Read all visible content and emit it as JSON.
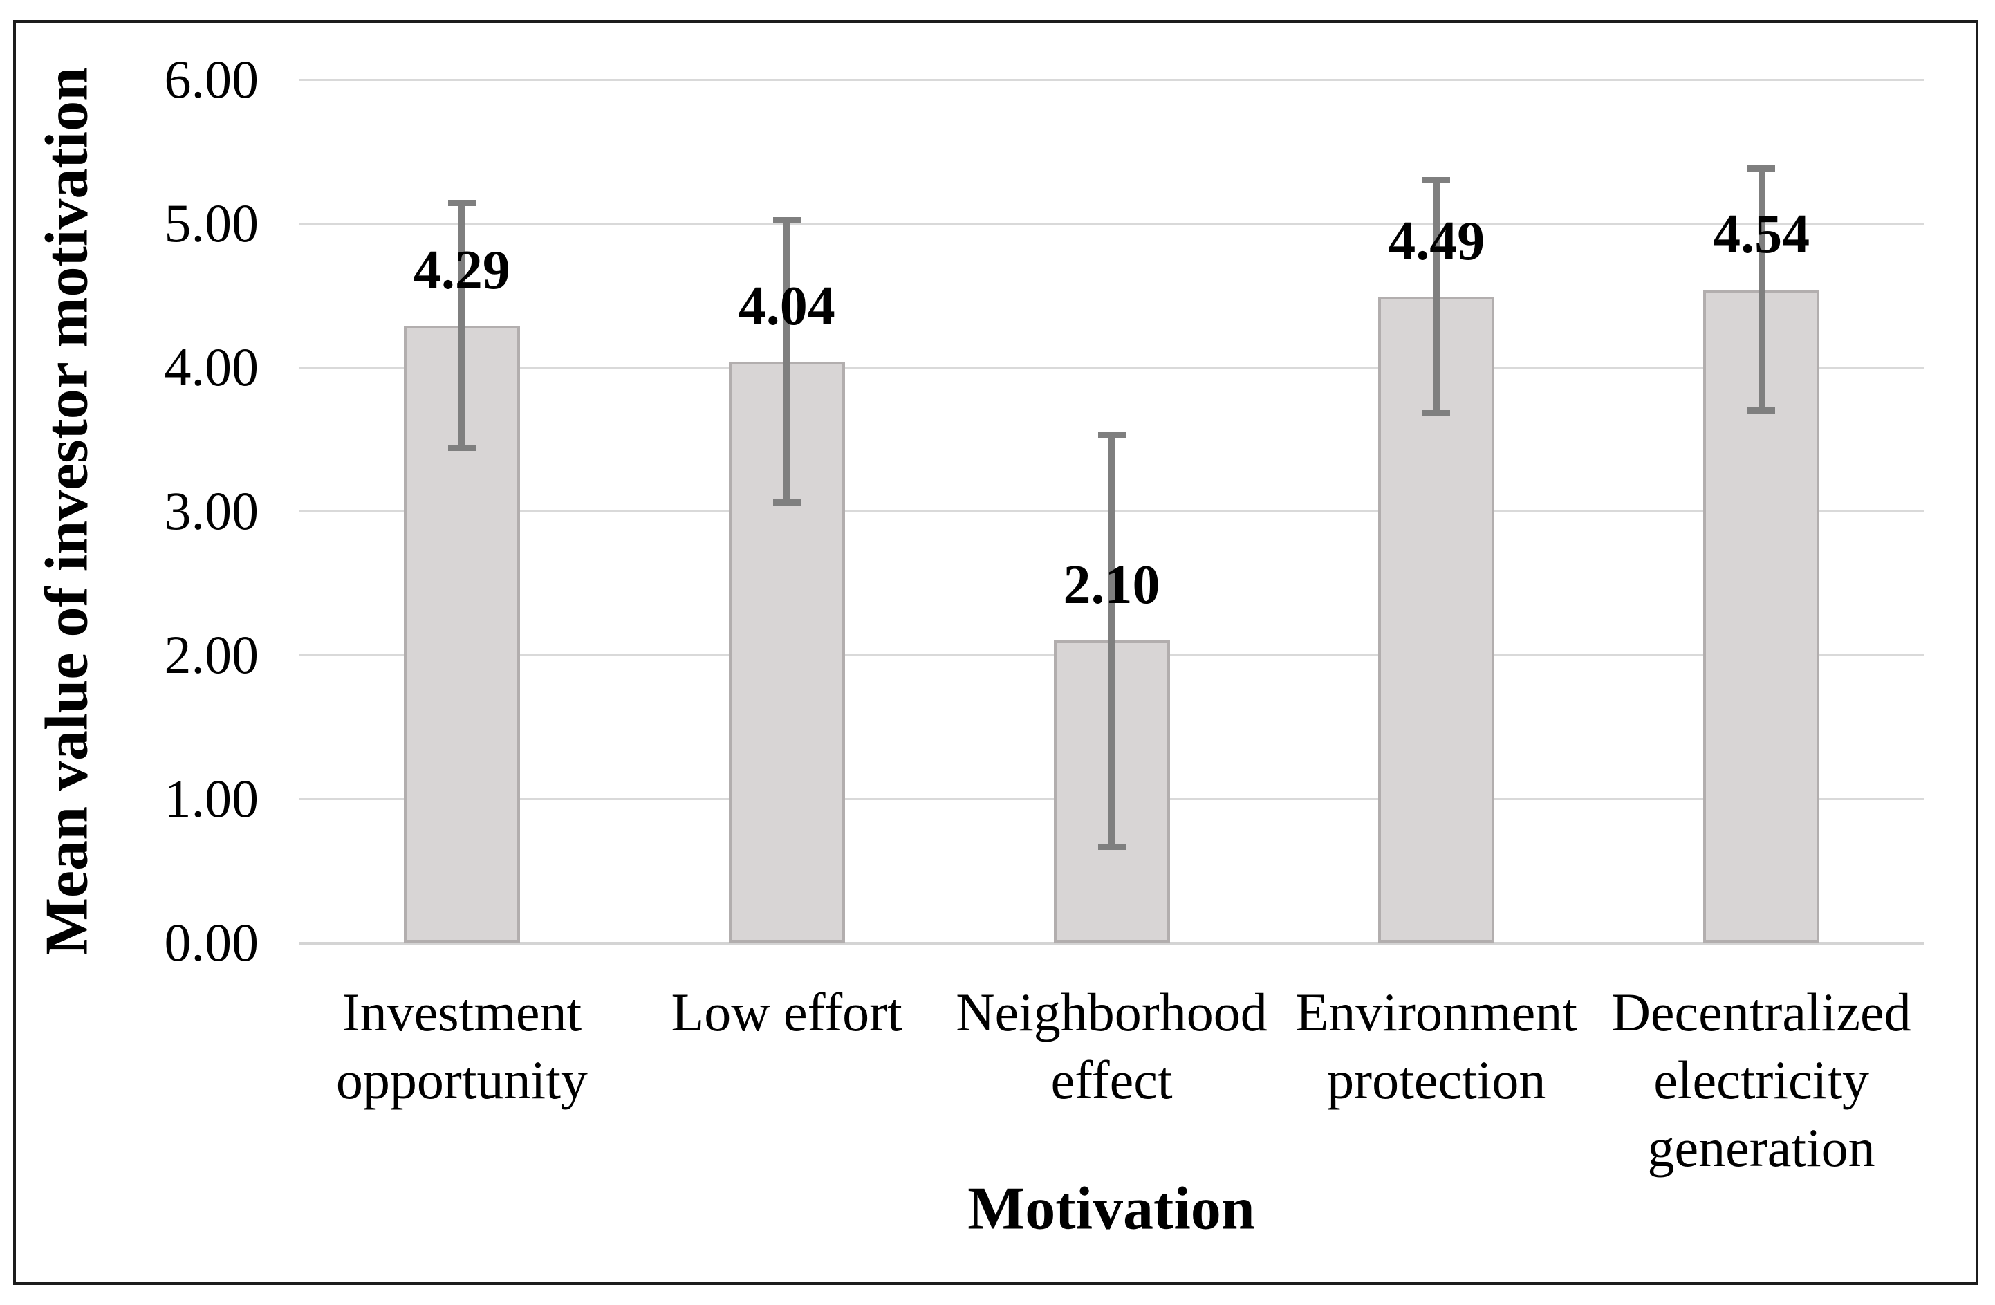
{
  "chart_data": {
    "type": "bar",
    "title": "",
    "xlabel": "Motivation",
    "ylabel": "Mean value of investor motivation",
    "categories": [
      "Investment opportunity",
      "Low effort",
      "Neighborhood effect",
      "Environment protection",
      "Decentralized electricity generation"
    ],
    "values": [
      4.29,
      4.04,
      2.1,
      4.49,
      4.54
    ],
    "data_labels": [
      "4.29",
      "4.04",
      "2.10",
      "4.49",
      "4.54"
    ],
    "error_low": [
      3.45,
      3.07,
      0.68,
      3.69,
      3.71
    ],
    "error_high": [
      5.13,
      5.01,
      3.52,
      5.29,
      5.37
    ],
    "ylim": [
      0,
      6
    ],
    "ytick_step": 1,
    "ytick_labels": [
      "0.00",
      "1.00",
      "2.00",
      "3.00",
      "4.00",
      "5.00",
      "6.00"
    ],
    "grid": true,
    "legend": false,
    "colors": {
      "bar_fill": "#d8d5d5",
      "bar_border": "#b2aeae",
      "error_bar": "#7f7f7f",
      "gridline": "#d9d9d9",
      "axis_line": "#d4d4d4",
      "text": "#000000",
      "chart_border": "#1c1c1c"
    }
  }
}
